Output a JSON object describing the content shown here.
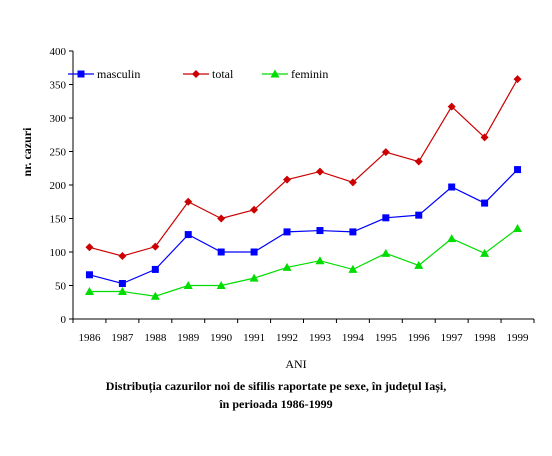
{
  "chart_data": {
    "type": "line",
    "categories": [
      "1986",
      "1987",
      "1988",
      "1989",
      "1990",
      "1991",
      "1992",
      "1993",
      "1994",
      "1995",
      "1996",
      "1997",
      "1998",
      "1999"
    ],
    "series": [
      {
        "name": "masculin",
        "color": "#0000ff",
        "marker": "square",
        "values": [
          66,
          53,
          74,
          126,
          100,
          100,
          130,
          132,
          130,
          151,
          155,
          197,
          173,
          223
        ]
      },
      {
        "name": "total",
        "color": "#cc0000",
        "marker": "diamond",
        "values": [
          107,
          94,
          108,
          175,
          150,
          163,
          208,
          220,
          204,
          249,
          235,
          317,
          271,
          358
        ]
      },
      {
        "name": "feminin",
        "color": "#00dd00",
        "marker": "triangle",
        "values": [
          41,
          41,
          34,
          50,
          50,
          61,
          77,
          87,
          74,
          98,
          80,
          120,
          98,
          135
        ]
      }
    ],
    "ylim": [
      0,
      400
    ],
    "yticks": [
      "0",
      "50",
      "100",
      "150",
      "200",
      "250",
      "300",
      "350",
      "400"
    ],
    "ylabel": "nr. cazuri",
    "xlabel": "ANI",
    "legend_position": "top",
    "grid": false
  },
  "caption": {
    "line1": "Distribuția cazurilor noi de sifilis raportate pe sexe, în județul Iași,",
    "line2": "în perioada 1986-1999"
  }
}
